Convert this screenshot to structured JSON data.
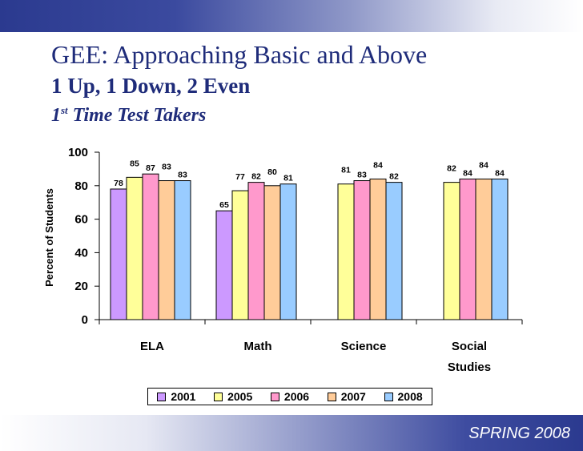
{
  "slide": {
    "title": "GEE: Approaching Basic and Above",
    "subtitle": "1 Up, 1 Down, 2 Even",
    "subtitle2_prefix": "1",
    "subtitle2_sup": "st",
    "subtitle2_rest": " Time Test Takers",
    "footer": "SPRING 2008"
  },
  "chart_data": {
    "type": "bar",
    "ylabel": "Percent of Students",
    "xlabel": "",
    "ylim": [
      0,
      100
    ],
    "yticks": [
      0,
      20,
      40,
      60,
      80,
      100
    ],
    "categories": [
      [
        "ELA"
      ],
      [
        "Math"
      ],
      [
        "Science"
      ],
      [
        "Social",
        "Studies"
      ]
    ],
    "legend_position": "bottom",
    "series": [
      {
        "name": "2001",
        "color": "#cc99ff",
        "values": [
          78,
          65,
          null,
          null
        ]
      },
      {
        "name": "2005",
        "color": "#ffff99",
        "values": [
          85,
          77,
          81,
          82
        ]
      },
      {
        "name": "2006",
        "color": "#ff99cc",
        "values": [
          87,
          82,
          83,
          84
        ]
      },
      {
        "name": "2007",
        "color": "#ffcc99",
        "values": [
          83,
          80,
          84,
          84
        ]
      },
      {
        "name": "2008",
        "color": "#99ccff",
        "values": [
          83,
          81,
          82,
          84
        ]
      }
    ]
  }
}
